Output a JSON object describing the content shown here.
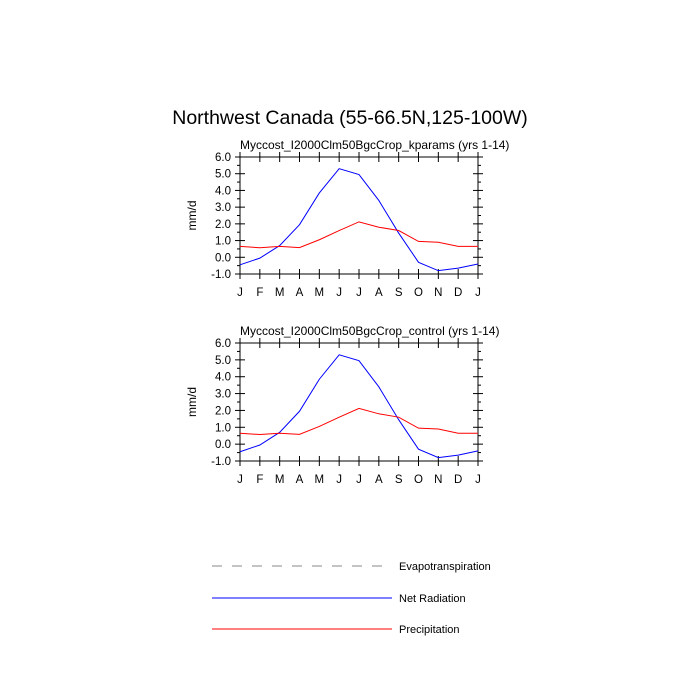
{
  "title": "Northwest Canada (55-66.5N,125-100W)",
  "colors": {
    "net_radiation": "#0000ff",
    "precipitation": "#ff0000",
    "evapotranspiration": "#888888"
  },
  "chart_data": [
    {
      "type": "line",
      "title": "Myccost_I2000Clm50BgcCrop_kparams (yrs 1-14)",
      "ylabel": "mm/d",
      "xlabel": "",
      "categories": [
        "J",
        "F",
        "M",
        "A",
        "M",
        "J",
        "J",
        "A",
        "S",
        "O",
        "N",
        "D",
        "J"
      ],
      "ylim": [
        -1.0,
        6.0
      ],
      "yticks": [
        "-1.0",
        "0.0",
        "1.0",
        "2.0",
        "3.0",
        "4.0",
        "5.0",
        "6.0"
      ],
      "series": [
        {
          "name": "Net Radiation",
          "values": [
            -0.45,
            -0.05,
            0.7,
            1.95,
            3.85,
            5.3,
            4.95,
            3.4,
            1.45,
            -0.3,
            -0.8,
            -0.65,
            -0.4
          ]
        },
        {
          "name": "Precipitation",
          "values": [
            0.65,
            0.57,
            0.65,
            0.58,
            1.05,
            1.6,
            2.12,
            1.8,
            1.6,
            0.95,
            0.9,
            0.65,
            0.65
          ]
        }
      ]
    },
    {
      "type": "line",
      "title": "Myccost_I2000Clm50BgcCrop_control (yrs 1-14)",
      "ylabel": "mm/d",
      "xlabel": "",
      "categories": [
        "J",
        "F",
        "M",
        "A",
        "M",
        "J",
        "J",
        "A",
        "S",
        "O",
        "N",
        "D",
        "J"
      ],
      "ylim": [
        -1.0,
        6.0
      ],
      "yticks": [
        "-1.0",
        "0.0",
        "1.0",
        "2.0",
        "3.0",
        "4.0",
        "5.0",
        "6.0"
      ],
      "series": [
        {
          "name": "Net Radiation",
          "values": [
            -0.45,
            -0.05,
            0.7,
            1.95,
            3.85,
            5.3,
            4.95,
            3.4,
            1.45,
            -0.3,
            -0.8,
            -0.65,
            -0.4
          ]
        },
        {
          "name": "Precipitation",
          "values": [
            0.65,
            0.57,
            0.65,
            0.58,
            1.05,
            1.6,
            2.12,
            1.8,
            1.6,
            0.95,
            0.9,
            0.65,
            0.65
          ]
        }
      ]
    }
  ],
  "legend": [
    {
      "label": "Evapotranspiration",
      "style": "dashed"
    },
    {
      "label": "Net Radiation",
      "style": "solid-blue"
    },
    {
      "label": "Precipitation",
      "style": "solid-red"
    }
  ]
}
